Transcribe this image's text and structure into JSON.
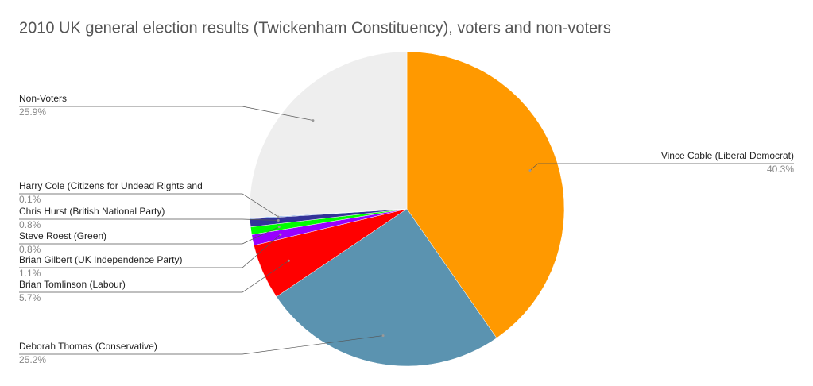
{
  "chart_data": {
    "type": "pie",
    "title": "2010 UK general election results (Twickenham Constituency), voters and non-voters",
    "categories": [
      "Vince Cable (Liberal Democrat)",
      "Deborah Thomas (Conservative)",
      "Brian Tomlinson (Labour)",
      "Brian Gilbert (UK Independence Party)",
      "Steve Roest (Green)",
      "Chris Hurst (British National Party)",
      "Harry Cole (Citizens for Undead Rights and",
      "Non-Voters"
    ],
    "values": [
      40.3,
      25.2,
      5.7,
      1.1,
      0.8,
      0.8,
      0.1,
      25.9
    ],
    "value_labels": [
      "40.3%",
      "25.2%",
      "5.7%",
      "1.1%",
      "0.8%",
      "0.8%",
      "0.1%",
      "25.9%"
    ],
    "colors": [
      "#ff9900",
      "#5b93b0",
      "#ff0000",
      "#9900ff",
      "#00ff00",
      "#333399",
      "#3c78d8",
      "#eeeeee"
    ]
  }
}
